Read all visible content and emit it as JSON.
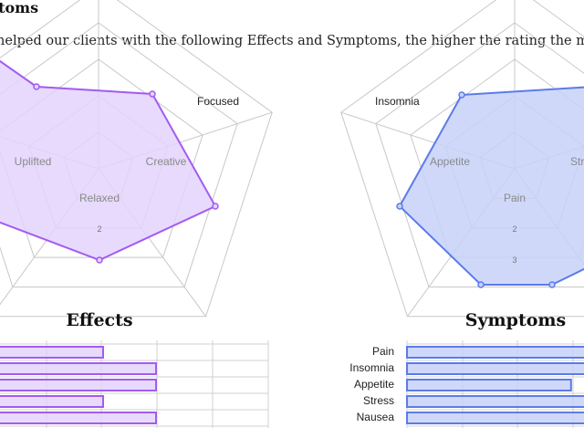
{
  "page": {
    "heading": "mptoms",
    "intro": "s helped our clients with the following Effects and Symptoms, the higher the rating the more"
  },
  "colors": {
    "effects_stroke": "#a35bf0",
    "effects_fill": "#e3d3fb",
    "symptoms_stroke": "#5b7bea",
    "symptoms_fill": "#c8d1f9"
  },
  "chart_data": [
    {
      "type": "radar",
      "name": "effects-radar",
      "axes_visible": [
        "Focused",
        "Uplifted",
        "Creative",
        "Relaxed"
      ],
      "ticks_visible": [
        "2"
      ],
      "rmax": 5
    },
    {
      "type": "radar",
      "name": "symptoms-radar",
      "axes_visible": [
        "Insomnia",
        "Appetite",
        "Str",
        "Pain"
      ],
      "ticks_visible": [
        "2",
        "3"
      ],
      "rmax": 5
    },
    {
      "type": "bar",
      "orientation": "horizontal",
      "title": "Effects",
      "categories": [
        "",
        "",
        "",
        "",
        ""
      ],
      "values": [
        3.5,
        4.5,
        4.5,
        3.5,
        4.5
      ],
      "xlim": [
        0,
        5
      ]
    },
    {
      "type": "bar",
      "orientation": "horizontal",
      "title": "Symptoms",
      "categories": [
        "Pain",
        "Insomnia",
        "Appetite",
        "Stress",
        "Nausea"
      ],
      "values": [
        5,
        5,
        3.1,
        5,
        5
      ],
      "xlim": [
        0,
        5
      ]
    }
  ]
}
